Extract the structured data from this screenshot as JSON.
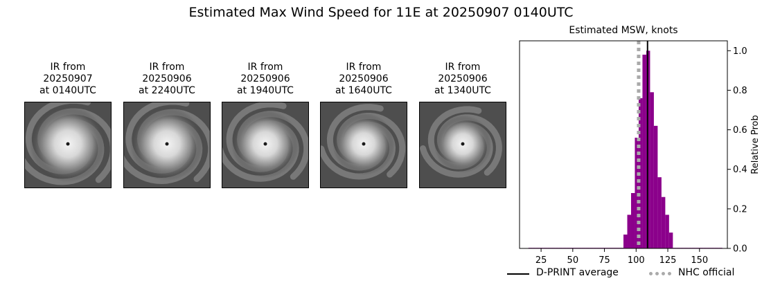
{
  "suptitle": "Estimated Max Wind Speed for 11E at 20250907 0140UTC",
  "ir_panels": [
    {
      "line1": "IR from",
      "line2": "20250907",
      "line3": "at 0140UTC",
      "cloud_spread": 0.95
    },
    {
      "line1": "IR from",
      "line2": "20250906",
      "line3": "at 2240UTC",
      "cloud_spread": 0.92
    },
    {
      "line1": "IR from",
      "line2": "20250906",
      "line3": "at 1940UTC",
      "cloud_spread": 0.85
    },
    {
      "line1": "IR from",
      "line2": "20250906",
      "line3": "at 1640UTC",
      "cloud_spread": 0.78
    },
    {
      "line1": "IR from",
      "line2": "20250906",
      "line3": "at 1340UTC",
      "cloud_spread": 0.72
    }
  ],
  "chart_data": {
    "type": "bar",
    "title": "Estimated MSW, knots",
    "xlabel": "",
    "ylabel": "Relative Prob",
    "xlim": [
      8,
      172
    ],
    "ylim": [
      0,
      1.05
    ],
    "xticks": [
      25,
      50,
      75,
      100,
      125,
      150
    ],
    "yticks": [
      0.0,
      0.2,
      0.4,
      0.6,
      0.8,
      1.0
    ],
    "y_axis_side": "right",
    "bar_color": "#8b008b",
    "bin_width": 3,
    "bins_left": [
      15,
      18,
      21,
      24,
      27,
      30,
      33,
      36,
      39,
      42,
      45,
      48,
      51,
      54,
      57,
      60,
      63,
      66,
      69,
      72,
      75,
      78,
      81,
      84,
      87,
      90,
      93,
      96,
      99,
      102,
      105,
      108,
      111,
      114,
      117,
      120,
      123,
      126,
      129,
      132,
      135,
      138,
      141,
      144,
      147,
      150,
      153,
      156,
      159,
      162,
      165
    ],
    "values": [
      0.003,
      0.003,
      0.003,
      0.003,
      0.003,
      0.003,
      0.003,
      0.003,
      0.003,
      0.003,
      0.003,
      0.003,
      0.003,
      0.003,
      0.003,
      0.003,
      0.003,
      0.003,
      0.003,
      0.003,
      0.003,
      0.003,
      0.003,
      0.003,
      0.003,
      0.07,
      0.17,
      0.28,
      0.56,
      0.76,
      0.98,
      1.0,
      0.79,
      0.62,
      0.36,
      0.26,
      0.17,
      0.08,
      0.003,
      0.003,
      0.003,
      0.003,
      0.003,
      0.003,
      0.003,
      0.003,
      0.003,
      0.003,
      0.003,
      0.003,
      0.003
    ],
    "dprint_average": 109,
    "nhc_official": 102,
    "legend": [
      {
        "label": "D-PRINT average",
        "color": "#000000",
        "style": "solid"
      },
      {
        "label": "NHC official",
        "color": "#aaaaaa",
        "style": "dotted"
      }
    ],
    "legend_placement": "bottom"
  }
}
